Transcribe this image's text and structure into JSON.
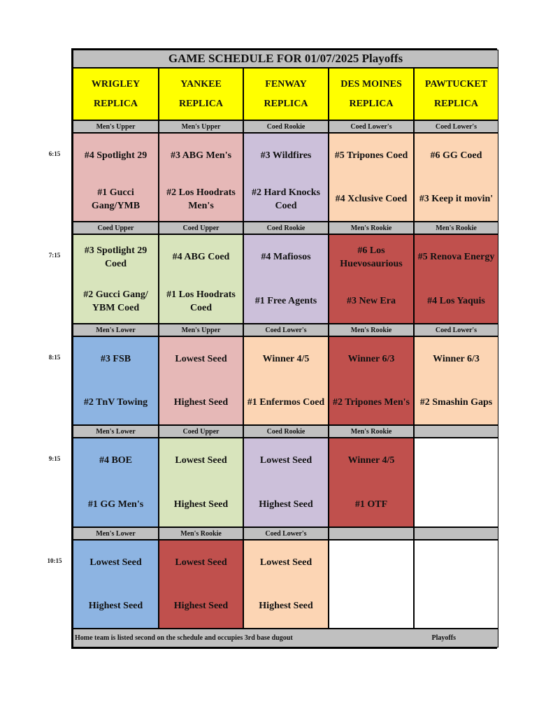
{
  "title": "GAME SCHEDULE FOR 01/07/2025 Playoffs",
  "colors": {
    "pink": "#e6b8b7",
    "purple": "#ccc0da",
    "peach": "#fcd5b4",
    "green": "#d8e4bc",
    "red": "#c0504d",
    "blue": "#8db4e2",
    "white": "#ffffff",
    "header": "#ffff00",
    "label": "#c0c0c0"
  },
  "columns": [
    {
      "line1": "WRIGLEY",
      "line2": "REPLICA"
    },
    {
      "line1": "YANKEE",
      "line2": "REPLICA"
    },
    {
      "line1": "FENWAY",
      "line2": "REPLICA"
    },
    {
      "line1": "DES MOINES",
      "line2": "REPLICA"
    },
    {
      "line1": "PAWTUCKET",
      "line2": "REPLICA"
    }
  ],
  "slots": [
    {
      "time": "6:15",
      "divisions": [
        "Men's Upper",
        "Men's Upper",
        "Coed Rookie",
        "Coed Lower's",
        "Coed Lower's"
      ],
      "games": [
        {
          "top": "#4 Spotlight 29",
          "bottom": "#1 Gucci Gang/YMB",
          "color": "pink"
        },
        {
          "top": "#3 ABG Men's",
          "bottom": "#2 Los Hoodrats Men's",
          "color": "pink"
        },
        {
          "top": "#3 Wildfires",
          "bottom": "#2 Hard Knocks Coed",
          "color": "purple"
        },
        {
          "top": "#5 Tripones Coed",
          "bottom": "#4 Xclusive Coed",
          "color": "peach"
        },
        {
          "top": "#6 GG Coed",
          "bottom": "#3 Keep it movin'",
          "color": "peach"
        }
      ]
    },
    {
      "time": "7:15",
      "divisions": [
        "Coed Upper",
        "Coed Upper",
        "Coed Rookie",
        "Men's Rookie",
        "Men's Rookie"
      ],
      "games": [
        {
          "top": "#3 Spotlight 29 Coed",
          "bottom": "#2 Gucci Gang/ YBM Coed",
          "color": "green"
        },
        {
          "top": "#4 ABG Coed",
          "bottom": "#1 Los Hoodrats Coed",
          "color": "green"
        },
        {
          "top": "#4 Mafiosos",
          "bottom": "#1 Free Agents",
          "color": "purple"
        },
        {
          "top": "#6 Los Huevosaurious",
          "bottom": "#3 New Era",
          "color": "red"
        },
        {
          "top": "#5 Renova Energy",
          "bottom": "#4 Los Yaquis",
          "color": "red"
        }
      ]
    },
    {
      "time": "8:15",
      "divisions": [
        "Men's Lower",
        "Men's Upper",
        "Coed Lower's",
        "Men's Rookie",
        "Coed Lower's"
      ],
      "games": [
        {
          "top": "#3 FSB",
          "bottom": "#2 TnV Towing",
          "color": "blue"
        },
        {
          "top": "Lowest Seed",
          "bottom": "Highest Seed",
          "color": "pink"
        },
        {
          "top": "Winner 4/5",
          "bottom": "#1 Enfermos Coed",
          "color": "peach"
        },
        {
          "top": "Winner 6/3",
          "bottom": "#2 Tripones Men's",
          "color": "red"
        },
        {
          "top": "Winner 6/3",
          "bottom": "#2 Smashin Gaps",
          "color": "peach"
        }
      ]
    },
    {
      "time": "9:15",
      "divisions": [
        "Men's Lower",
        "Coed Upper",
        "Coed Rookie",
        "Men's Rookie",
        ""
      ],
      "games": [
        {
          "top": "#4 BOE",
          "bottom": "#1 GG Men's",
          "color": "blue"
        },
        {
          "top": "Lowest Seed",
          "bottom": "Highest Seed",
          "color": "green"
        },
        {
          "top": "Lowest Seed",
          "bottom": "Highest Seed",
          "color": "purple"
        },
        {
          "top": "Winner 4/5",
          "bottom": "#1 OTF",
          "color": "red"
        },
        {
          "top": "",
          "bottom": "",
          "color": "white"
        }
      ]
    },
    {
      "time": "10:15",
      "divisions": [
        "Men's Lower",
        "Men's Rookie",
        "Coed Lower's",
        "",
        ""
      ],
      "games": [
        {
          "top": "Lowest Seed",
          "bottom": "Highest Seed",
          "color": "blue"
        },
        {
          "top": "Lowest Seed",
          "bottom": "Highest Seed",
          "color": "red"
        },
        {
          "top": "Lowest Seed",
          "bottom": "Highest Seed",
          "color": "peach"
        },
        {
          "top": "",
          "bottom": "",
          "color": "white"
        },
        {
          "top": "",
          "bottom": "",
          "color": "white"
        }
      ]
    }
  ],
  "footer": {
    "note": "Home team is listed second on the schedule and occupies 3rd base dugout",
    "label": "Playoffs"
  }
}
